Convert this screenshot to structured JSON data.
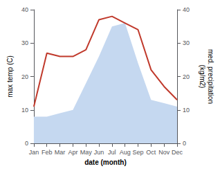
{
  "chart_data": {
    "type": "line",
    "categories": [
      "Jan",
      "Feb",
      "Mar",
      "Apr",
      "May",
      "Jun",
      "Jul",
      "Aug",
      "Sep",
      "Oct",
      "Nov",
      "Dec"
    ],
    "series": [
      {
        "type": "area",
        "axis": "y2",
        "color": "#c5d8f0",
        "values": [
          8,
          8,
          9,
          10,
          18,
          26,
          35,
          36,
          24,
          13,
          12,
          11
        ]
      },
      {
        "type": "line",
        "color": "#c0392b",
        "values": [
          11,
          27,
          26,
          26,
          28,
          37,
          38,
          36,
          34,
          22,
          17,
          13
        ]
      }
    ],
    "xlabel": "date (month)",
    "ylabel": "max temp (C)",
    "y2label": "med. precipitation\n(kg/m2)",
    "ylim": [
      0,
      40
    ],
    "yticks": [
      0,
      10,
      20,
      30,
      40
    ],
    "y2lim": [
      0,
      40
    ],
    "y2ticks": [
      0,
      10,
      20,
      30,
      40
    ],
    "grid": false
  }
}
